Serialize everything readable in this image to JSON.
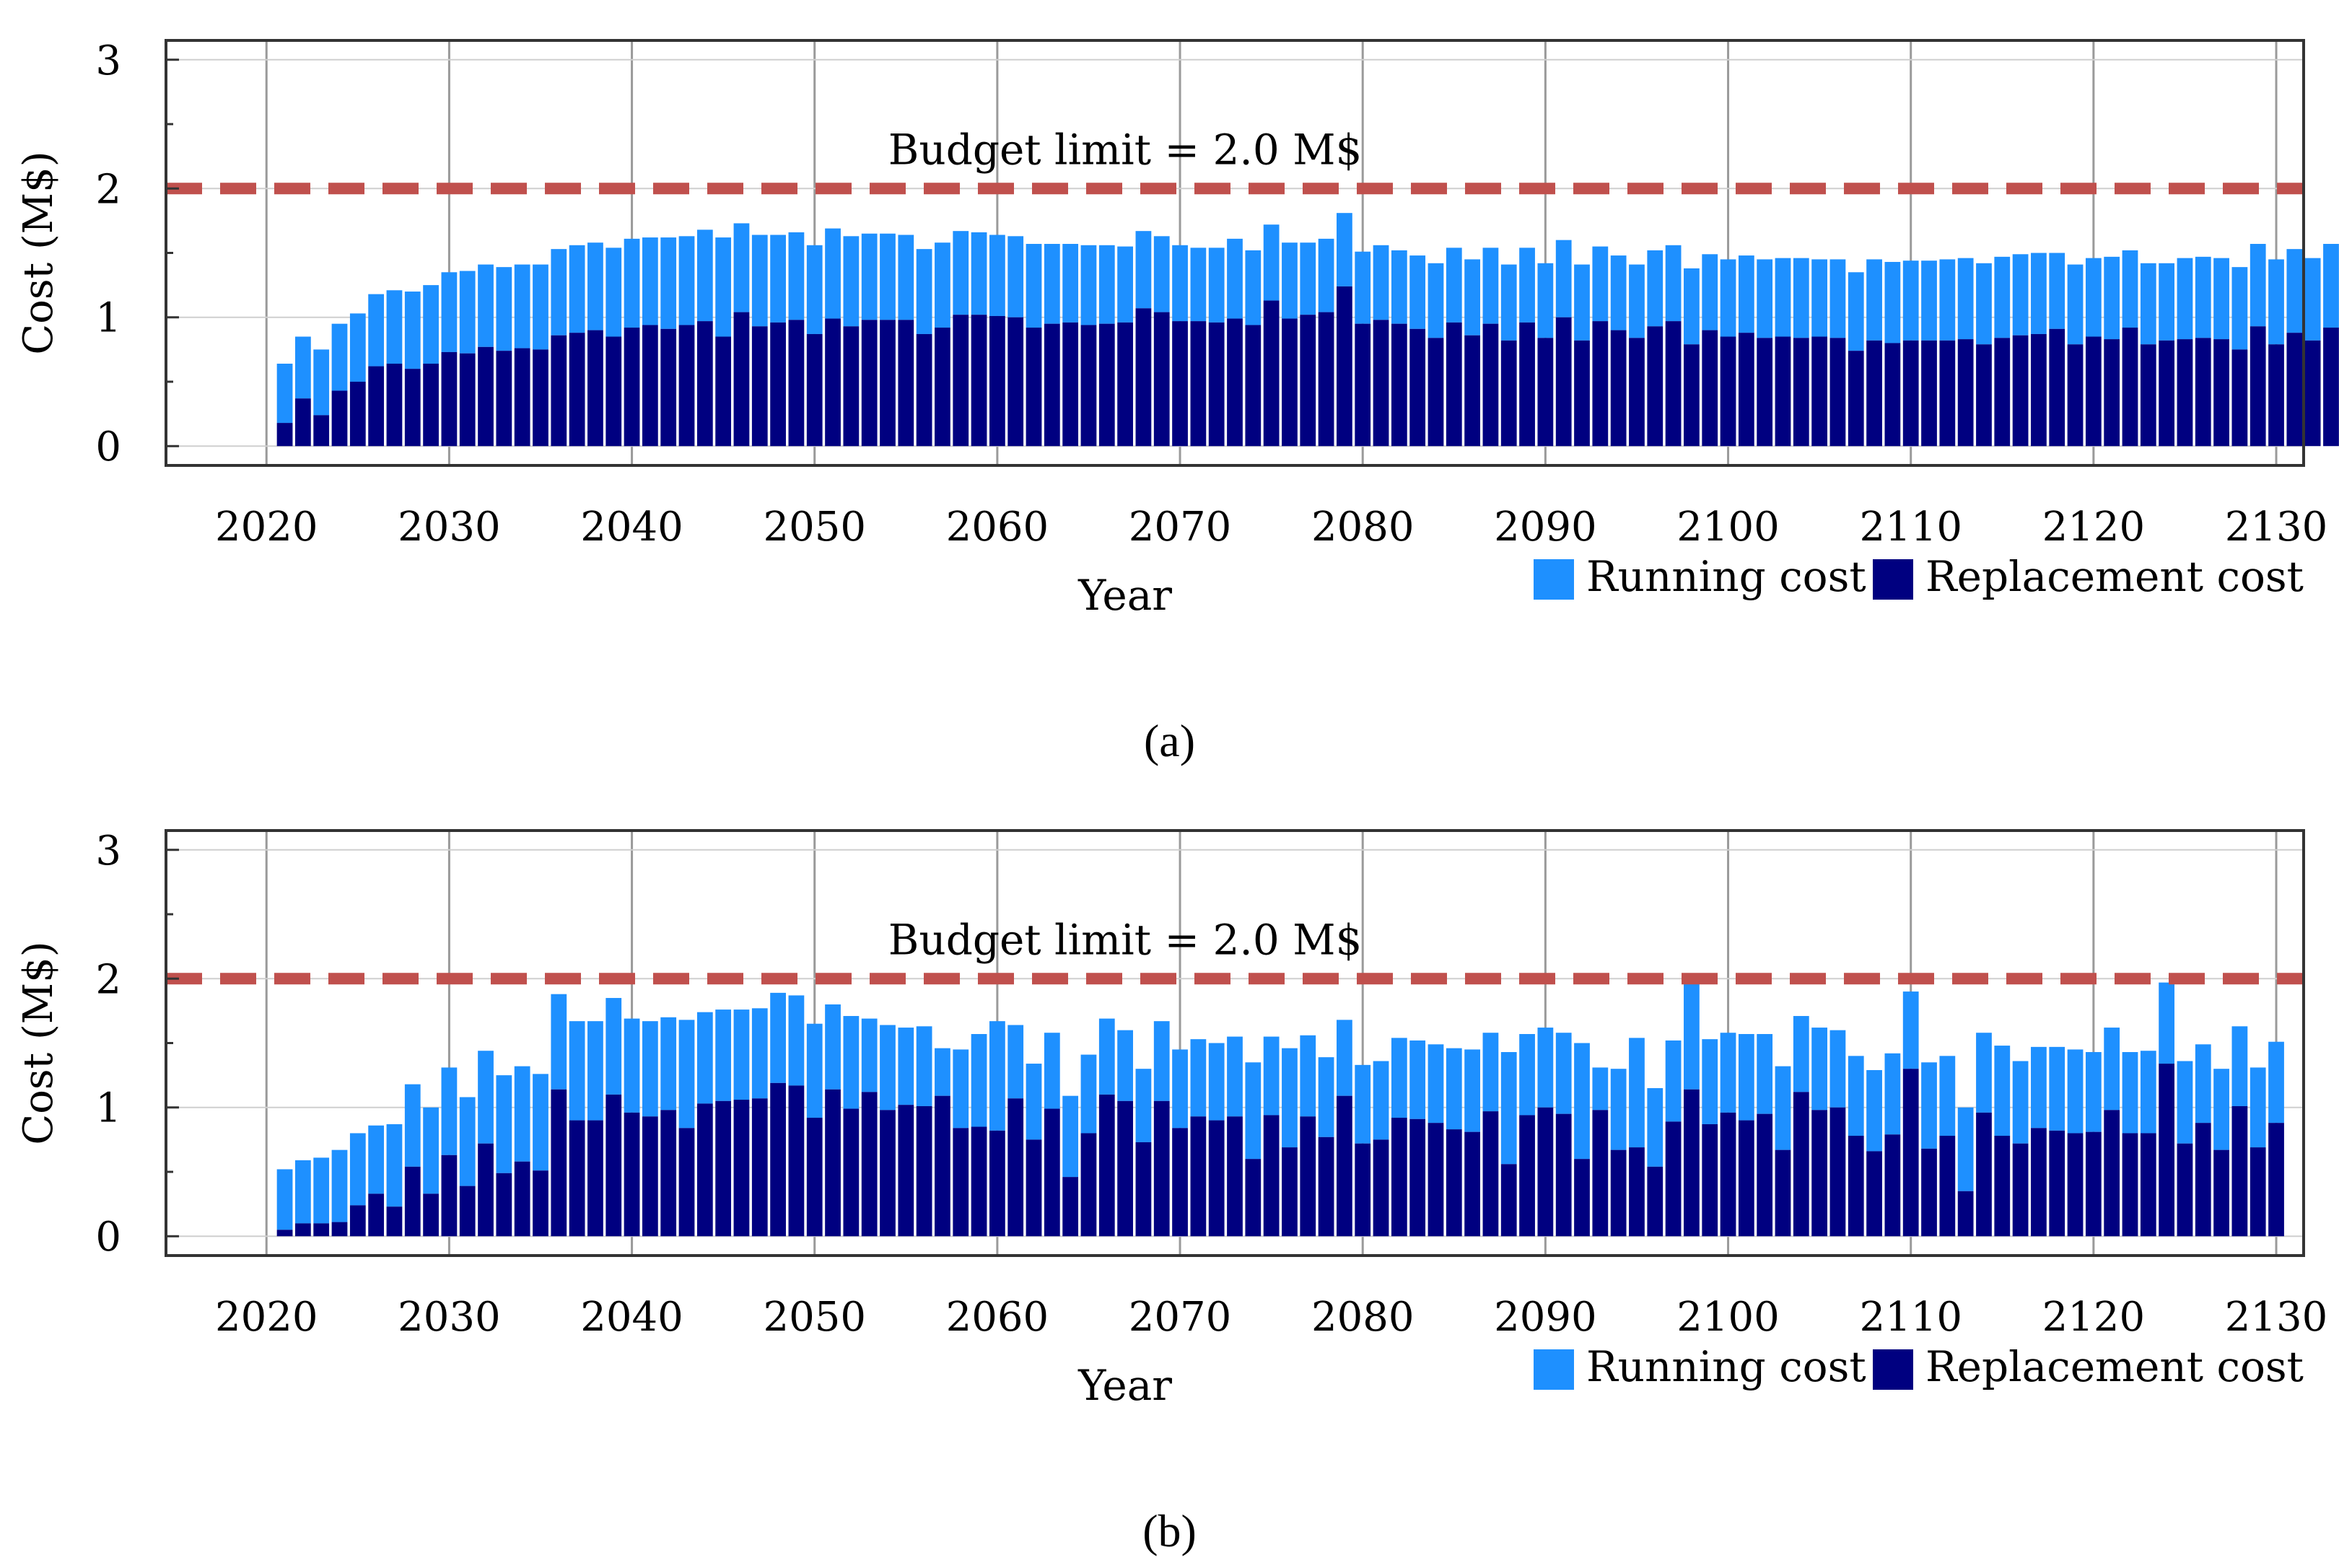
{
  "chart_data": [
    {
      "type": "bar",
      "stacked": true,
      "panel_label": "(a)",
      "xlabel": "Year",
      "ylabel": "Cost (M$)",
      "xlim": [
        2014.5,
        2131.5
      ],
      "ylim": [
        -0.15,
        3.15
      ],
      "xticks": [
        2020,
        2030,
        2040,
        2050,
        2060,
        2070,
        2080,
        2090,
        2100,
        2110,
        2120,
        2130
      ],
      "yticks": [
        0,
        1,
        2,
        3
      ],
      "grid": true,
      "budget_limit": {
        "value": 2.0,
        "label": "Budget limit = 2.0 M$",
        "color": "#c0504d"
      },
      "legend": {
        "placement": "bottom-right",
        "entries": [
          {
            "name": "Running cost",
            "color": "#1e90ff"
          },
          {
            "name": "Replacement cost",
            "color": "#000080"
          }
        ]
      },
      "x_start": 2021,
      "series": [
        {
          "name": "Replacement cost",
          "color": "#000080",
          "values": [
            0.18,
            0.37,
            0.24,
            0.43,
            0.5,
            0.62,
            0.64,
            0.6,
            0.64,
            0.73,
            0.72,
            0.77,
            0.74,
            0.76,
            0.75,
            0.86,
            0.88,
            0.9,
            0.85,
            0.92,
            0.94,
            0.91,
            0.94,
            0.97,
            0.85,
            1.04,
            0.93,
            0.96,
            0.98,
            0.87,
            0.99,
            0.93,
            0.98,
            0.98,
            0.98,
            0.87,
            0.92,
            1.02,
            1.02,
            1.01,
            1.0,
            0.92,
            0.95,
            0.96,
            0.94,
            0.95,
            0.96,
            1.07,
            1.04,
            0.97,
            0.97,
            0.96,
            0.99,
            0.94,
            1.13,
            0.99,
            1.02,
            1.04,
            1.24,
            0.95,
            0.98,
            0.95,
            0.91,
            0.84,
            0.96,
            0.86,
            0.95,
            0.82,
            0.96,
            0.84,
            1.0,
            0.82,
            0.97,
            0.9,
            0.84,
            0.93,
            0.97,
            0.79,
            0.9,
            0.85,
            0.88,
            0.84,
            0.85,
            0.84,
            0.85,
            0.84,
            0.74,
            0.82,
            0.8,
            0.82,
            0.82,
            0.82,
            0.83,
            0.79,
            0.84,
            0.86,
            0.87,
            0.91,
            0.79,
            0.85,
            0.83,
            0.92,
            0.79,
            0.82,
            0.83,
            0.84,
            0.83,
            0.75,
            0.93,
            0.79,
            0.88,
            0.82,
            0.92
          ]
        },
        {
          "name": "Running cost",
          "color": "#1e90ff",
          "values": [
            0.46,
            0.48,
            0.51,
            0.52,
            0.53,
            0.56,
            0.57,
            0.6,
            0.61,
            0.62,
            0.64,
            0.64,
            0.65,
            0.65,
            0.66,
            0.67,
            0.68,
            0.68,
            0.69,
            0.69,
            0.68,
            0.71,
            0.69,
            0.71,
            0.77,
            0.69,
            0.71,
            0.68,
            0.68,
            0.69,
            0.7,
            0.7,
            0.67,
            0.67,
            0.66,
            0.66,
            0.66,
            0.65,
            0.64,
            0.63,
            0.63,
            0.65,
            0.62,
            0.61,
            0.62,
            0.61,
            0.59,
            0.6,
            0.59,
            0.59,
            0.57,
            0.58,
            0.62,
            0.58,
            0.59,
            0.59,
            0.56,
            0.57,
            0.57,
            0.56,
            0.58,
            0.57,
            0.57,
            0.58,
            0.58,
            0.59,
            0.59,
            0.59,
            0.58,
            0.58,
            0.6,
            0.59,
            0.58,
            0.58,
            0.57,
            0.59,
            0.59,
            0.59,
            0.59,
            0.6,
            0.6,
            0.61,
            0.61,
            0.62,
            0.6,
            0.61,
            0.61,
            0.63,
            0.63,
            0.62,
            0.62,
            0.63,
            0.63,
            0.63,
            0.63,
            0.63,
            0.63,
            0.59,
            0.62,
            0.61,
            0.64,
            0.6,
            0.63,
            0.6,
            0.63,
            0.63,
            0.63,
            0.64,
            0.64,
            0.66,
            0.65,
            0.64,
            0.65
          ]
        }
      ]
    },
    {
      "type": "bar",
      "stacked": true,
      "panel_label": "(b)",
      "xlabel": "Year",
      "ylabel": "Cost (M$)",
      "xlim": [
        2014.5,
        2131.5
      ],
      "ylim": [
        -0.15,
        3.15
      ],
      "xticks": [
        2020,
        2030,
        2040,
        2050,
        2060,
        2070,
        2080,
        2090,
        2100,
        2110,
        2120,
        2130
      ],
      "yticks": [
        0,
        1,
        2,
        3
      ],
      "grid": true,
      "budget_limit": {
        "value": 2.0,
        "label": "Budget limit = 2.0 M$",
        "color": "#c0504d"
      },
      "legend": {
        "placement": "bottom-right",
        "entries": [
          {
            "name": "Running cost",
            "color": "#1e90ff"
          },
          {
            "name": "Replacement cost",
            "color": "#000080"
          }
        ]
      },
      "x_start": 2021,
      "series": [
        {
          "name": "Replacement cost",
          "color": "#000080",
          "values": [
            0.05,
            0.1,
            0.1,
            0.11,
            0.24,
            0.33,
            0.23,
            0.54,
            0.33,
            0.63,
            0.39,
            0.72,
            0.49,
            0.58,
            0.51,
            1.14,
            0.9,
            0.9,
            1.1,
            0.96,
            0.93,
            0.98,
            0.84,
            1.03,
            1.05,
            1.06,
            1.07,
            1.19,
            1.17,
            0.92,
            1.14,
            0.99,
            1.12,
            0.98,
            1.02,
            1.01,
            1.09,
            0.84,
            0.85,
            0.82,
            1.07,
            0.75,
            0.99,
            0.46,
            0.8,
            1.1,
            1.05,
            0.73,
            1.05,
            0.84,
            0.93,
            0.9,
            0.93,
            0.6,
            0.94,
            0.69,
            0.93,
            0.77,
            1.09,
            0.72,
            0.75,
            0.92,
            0.91,
            0.88,
            0.83,
            0.81,
            0.97,
            0.56,
            0.94,
            1.0,
            0.95,
            0.6,
            0.98,
            0.67,
            0.69,
            0.54,
            0.89,
            1.14,
            0.87,
            0.96,
            0.9,
            0.95,
            0.67,
            1.12,
            0.98,
            1.0,
            0.78,
            0.66,
            0.79,
            1.3,
            0.68,
            0.78,
            0.35,
            0.96,
            0.78,
            0.72,
            0.84,
            0.82,
            0.8,
            0.81,
            0.98,
            0.8,
            0.8,
            1.34,
            0.72,
            0.88,
            0.67,
            1.01,
            0.69,
            0.88
          ]
        },
        {
          "name": "Running cost",
          "color": "#1e90ff",
          "values": [
            0.47,
            0.49,
            0.51,
            0.56,
            0.56,
            0.53,
            0.64,
            0.64,
            0.67,
            0.68,
            0.69,
            0.72,
            0.76,
            0.74,
            0.75,
            0.74,
            0.77,
            0.77,
            0.75,
            0.73,
            0.74,
            0.72,
            0.84,
            0.71,
            0.71,
            0.7,
            0.7,
            0.7,
            0.7,
            0.73,
            0.66,
            0.72,
            0.57,
            0.66,
            0.6,
            0.62,
            0.37,
            0.61,
            0.72,
            0.85,
            0.57,
            0.59,
            0.59,
            0.63,
            0.61,
            0.59,
            0.55,
            0.57,
            0.62,
            0.61,
            0.6,
            0.6,
            0.62,
            0.75,
            0.61,
            0.77,
            0.63,
            0.62,
            0.59,
            0.61,
            0.61,
            0.62,
            0.61,
            0.61,
            0.63,
            0.64,
            0.61,
            0.87,
            0.63,
            0.62,
            0.63,
            0.9,
            0.33,
            0.63,
            0.85,
            0.61,
            0.63,
            0.85,
            0.66,
            0.62,
            0.67,
            0.62,
            0.65,
            0.59,
            0.64,
            0.6,
            0.62,
            0.63,
            0.63,
            0.6,
            0.67,
            0.62,
            0.65,
            0.62,
            0.7,
            0.64,
            0.63,
            0.65,
            0.65,
            0.62,
            0.64,
            0.63,
            0.64,
            0.63,
            0.64,
            0.61,
            0.63,
            0.62,
            0.62,
            0.63
          ]
        }
      ]
    }
  ]
}
